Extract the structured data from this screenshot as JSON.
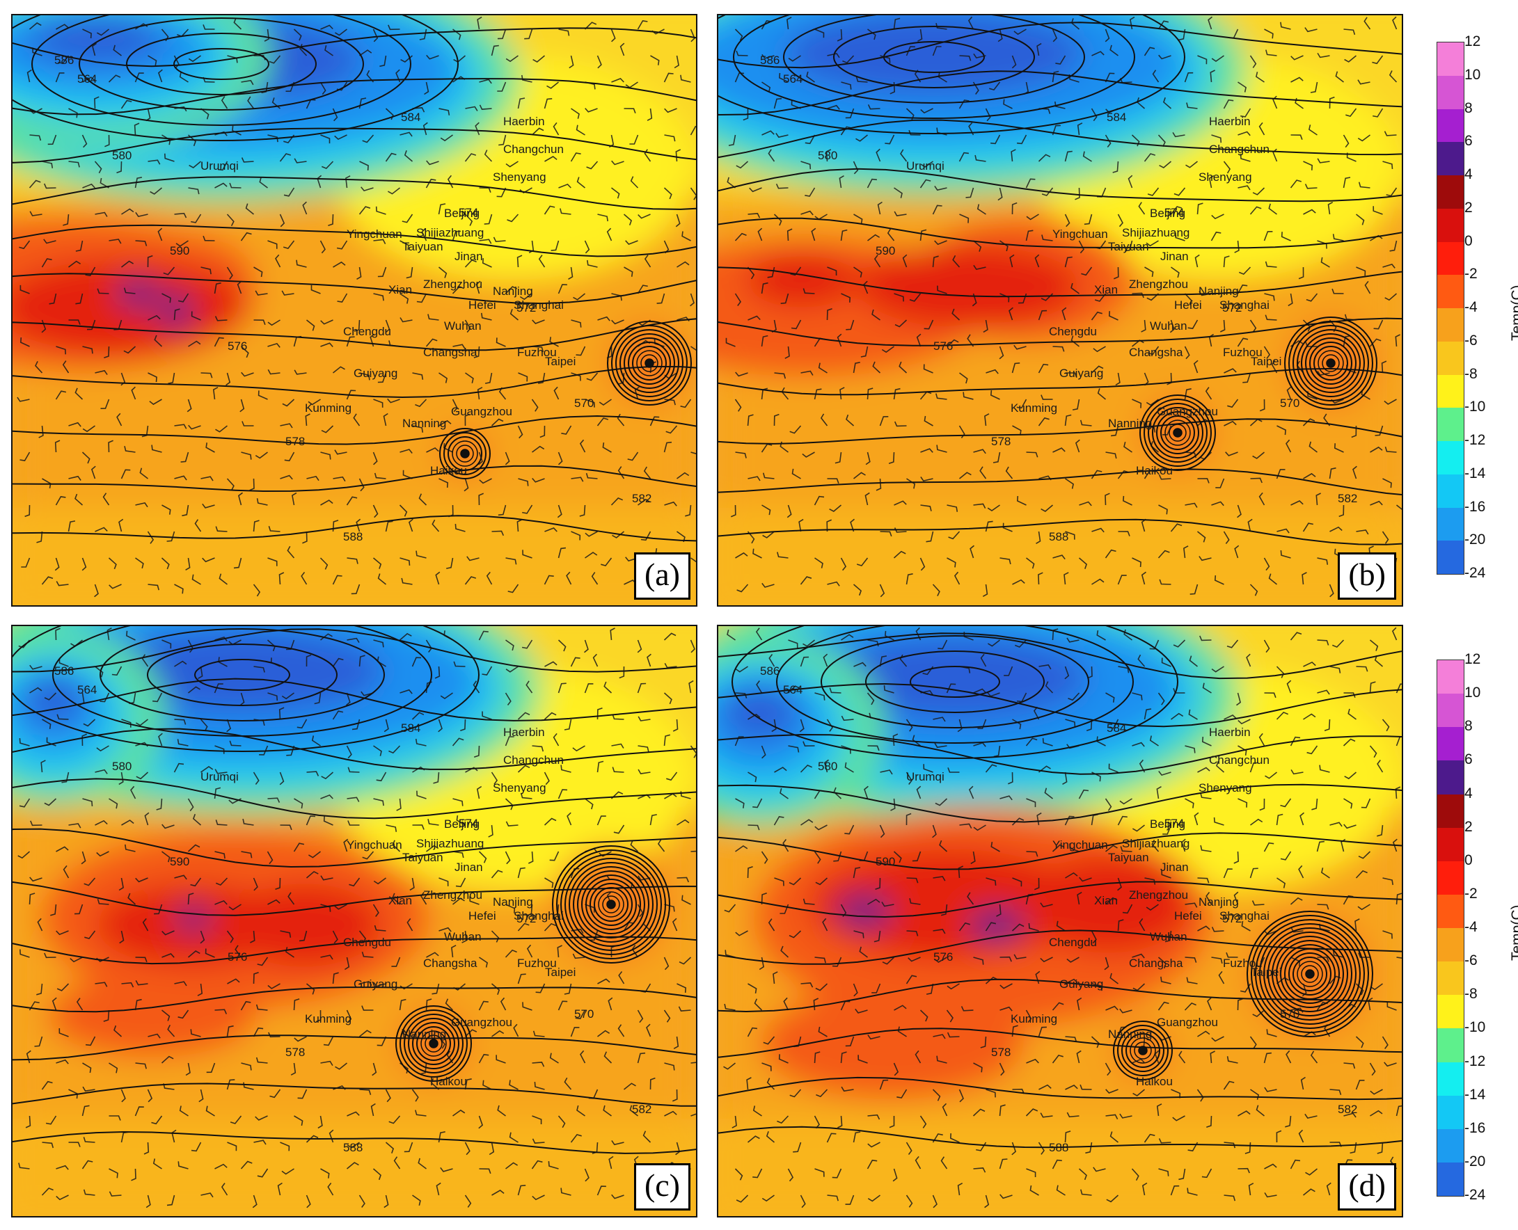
{
  "panels": [
    {
      "label": "(a)",
      "cities": [
        "Urumqi",
        "Haerbin",
        "Changchun",
        "Shenyang",
        "Beijing",
        "Yingchuan",
        "Shijiazhuang",
        "Taiyuan",
        "Jinan",
        "Xian",
        "Zhengzhou",
        "Nanjing",
        "Hefei",
        "Shanghai",
        "Chengdu",
        "Wuhan",
        "Guiyang",
        "Changsha",
        "Fuzhou",
        "Taipei",
        "Kunming",
        "Guangzhou",
        "Nanning",
        "Haikou"
      ]
    },
    {
      "label": "(b)",
      "cities": [
        "Urumqi",
        "Haerbin",
        "Changchun",
        "Shenyang",
        "Beijing",
        "Yingchuan",
        "Shijiazhuang",
        "Taiyuan",
        "Jinan",
        "Xian",
        "Zhengzhou",
        "Nanjing",
        "Hefei",
        "Shanghai",
        "Chengdu",
        "Wuhan",
        "Guiyang",
        "Changsha",
        "Fuzhou",
        "Taipei",
        "Kunming",
        "Guangzhou",
        "Nanning",
        "Haikou"
      ]
    },
    {
      "label": "(c)",
      "cities": [
        "Urumqi",
        "Haerbin",
        "Changchun",
        "Shenyang",
        "Beijing",
        "Yingchuan",
        "Shijiazhuang",
        "Taiyuan",
        "Jinan",
        "Xian",
        "Zhengzhou",
        "Nanjing",
        "Hefei",
        "Shanghai",
        "Chengdu",
        "Wuhan",
        "Guiyang",
        "Changsha",
        "Fuzhou",
        "Taipei",
        "Kunming",
        "Guangzhou",
        "Nanning",
        "Haikou"
      ]
    },
    {
      "label": "(d)",
      "cities": [
        "Urumqi",
        "Haerbin",
        "Changchun",
        "Shenyang",
        "Beijing",
        "Yingchuan",
        "Shijiazhuang",
        "Taiyuan",
        "Jinan",
        "Xian",
        "Zhengzhou",
        "Nanjing",
        "Hefei",
        "Shanghai",
        "Chengdu",
        "Wuhan",
        "Guiyang",
        "Changsha",
        "Fuzhou",
        "Taipei",
        "Kunming",
        "Guangzhou",
        "Nanning",
        "Haikou"
      ]
    }
  ],
  "colorbar": {
    "title": "Temp(C)",
    "ticks": [
      "12",
      "10",
      "8",
      "6",
      "4",
      "2",
      "0",
      "-2",
      "-4",
      "-6",
      "-8",
      "-10",
      "-12",
      "-14",
      "-16",
      "-20",
      "-24"
    ],
    "colors": [
      "#f47fd9",
      "#d655d4",
      "#a51fd0",
      "#4d1a8c",
      "#9e0b0b",
      "#d9100d",
      "#ff1e0c",
      "#ff5a12",
      "#f7a11c",
      "#f9c61d",
      "#fff21a",
      "#5ef08c",
      "#14eef0",
      "#13c8f5",
      "#1c9cf0",
      "#2569e0",
      "#1010f2"
    ]
  },
  "contour_labels": [
    "586",
    "580",
    "590",
    "576",
    "578",
    "588",
    "584",
    "574",
    "572",
    "570",
    "582",
    "564"
  ]
}
